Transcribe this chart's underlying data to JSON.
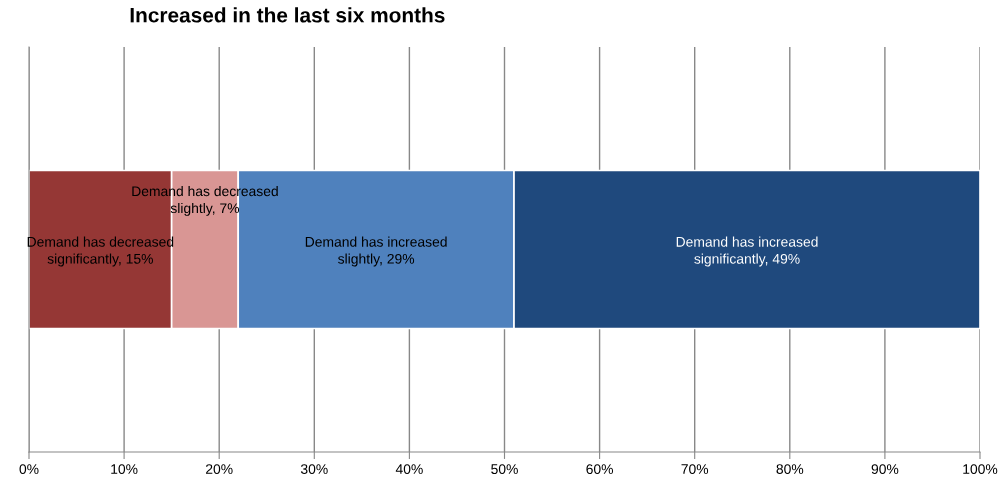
{
  "chart_data": {
    "type": "bar",
    "orientation": "horizontal",
    "stacked": true,
    "title": "Increased in the last six months",
    "categories": [
      null
    ],
    "series": [
      {
        "color": "#953735",
        "values": [
          15
        ],
        "value_labels": [
          "Demand has decreased\nsignificantly, 15%"
        ]
      },
      {
        "color": "#d99694",
        "values": [
          7
        ],
        "value_labels": [
          "Demand has decreased\nslightly, 7%"
        ]
      },
      {
        "color": "#4f81bd",
        "values": [
          29
        ],
        "value_labels": [
          "Demand has increased\nslightly, 29%"
        ]
      },
      {
        "color": "#1f497d",
        "values": [
          49
        ],
        "value_labels": [
          "Demand has increased\nsignificantly, 49%"
        ]
      }
    ],
    "xlim": [
      0,
      100
    ],
    "xticks": [
      {
        "value": 0,
        "label": "0%"
      },
      {
        "value": 10,
        "label": "10%"
      },
      {
        "value": 20,
        "label": "20%"
      },
      {
        "value": 30,
        "label": "30%"
      },
      {
        "value": 40,
        "label": "40%"
      },
      {
        "value": 50,
        "label": "50%"
      },
      {
        "value": 60,
        "label": "60%"
      },
      {
        "value": 70,
        "label": "70%"
      },
      {
        "value": 80,
        "label": "80%"
      },
      {
        "value": 90,
        "label": "90%"
      },
      {
        "value": 100,
        "label": "100%"
      }
    ],
    "grid": "x",
    "legend": false
  }
}
